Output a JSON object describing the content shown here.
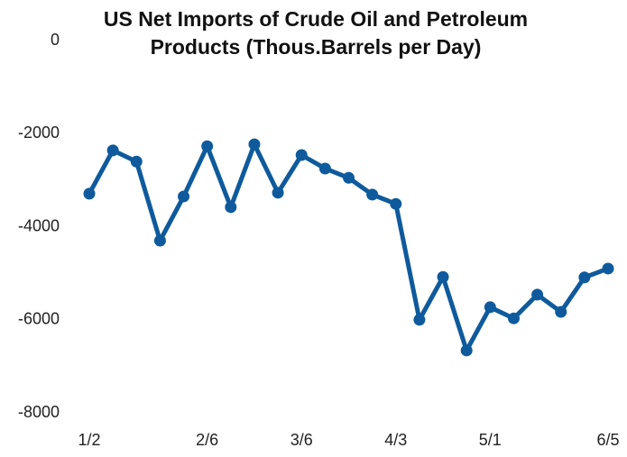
{
  "chart_data": {
    "type": "line",
    "title": "US Net Imports of Crude Oil and Petroleum Products (Thous.Barrels per Day)",
    "categories": [
      "1/2",
      null,
      null,
      null,
      null,
      "2/6",
      null,
      null,
      null,
      "3/6",
      null,
      null,
      null,
      "4/3",
      null,
      null,
      null,
      "5/1",
      null,
      null,
      null,
      null,
      "6/5"
    ],
    "values": [
      -3290,
      -2360,
      -2600,
      -4300,
      -3350,
      -2270,
      -3580,
      -2230,
      -3270,
      -2460,
      -2750,
      -2950,
      -3310,
      -3510,
      -6000,
      -5080,
      -6660,
      -5730,
      -5970,
      -5460,
      -5830,
      -5090,
      -4900
    ],
    "color": "#0e5a9c",
    "ylim": [
      -8000,
      0
    ],
    "yticks": [
      0,
      -2000,
      -4000,
      -6000,
      -8000
    ],
    "grid": false
  }
}
